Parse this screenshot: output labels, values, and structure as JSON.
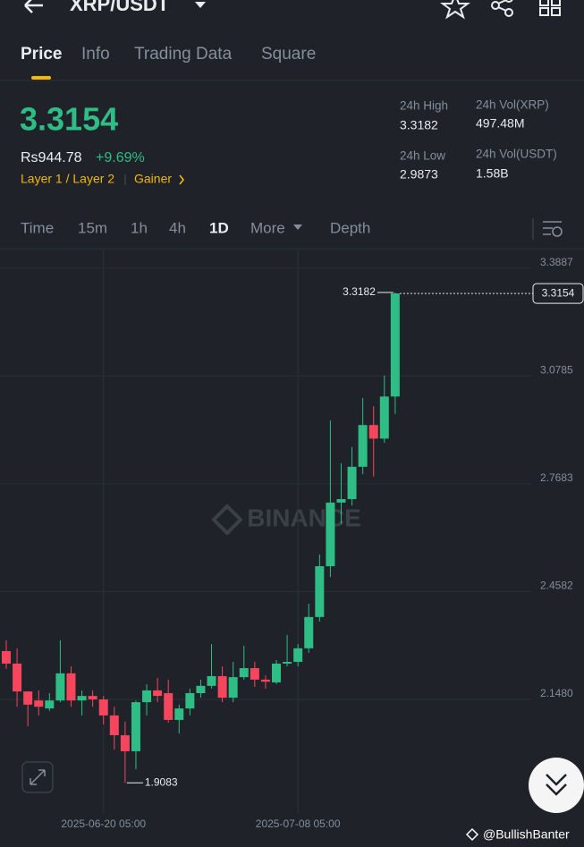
{
  "header": {
    "title": "XRP/USDT"
  },
  "tabs": [
    "Price",
    "Info",
    "Trading Data",
    "Square"
  ],
  "ticker": {
    "price": "3.3154",
    "local_price": "Rs944.78",
    "change": "+9.69%",
    "tags": [
      "Layer 1 / Layer 2",
      "Gainer"
    ]
  },
  "stats": [
    {
      "label": "24h High",
      "value": "3.3182"
    },
    {
      "label": "24h Vol(XRP)",
      "value": "497.48M"
    },
    {
      "label": "24h Low",
      "value": "2.9873"
    },
    {
      "label": "24h Vol(USDT)",
      "value": "1.58B"
    }
  ],
  "intervals": [
    "Time",
    "15m",
    "1h",
    "4h",
    "1D",
    "More",
    "Depth"
  ],
  "watermark": "BINANCE",
  "credit": "@BullishBanter",
  "chart_data": {
    "type": "candlestick",
    "categories": [
      null,
      null,
      null,
      null,
      null,
      null,
      null,
      null,
      null,
      "2025-06-20 05:00",
      null,
      null,
      null,
      null,
      null,
      null,
      null,
      null,
      null,
      null,
      null,
      null,
      null,
      null,
      null,
      null,
      null,
      "2025-07-08 05:00",
      null,
      null,
      null,
      null,
      null,
      null,
      null,
      null,
      null
    ],
    "open": [
      2.287,
      2.251,
      2.171,
      2.145,
      2.122,
      2.145,
      2.223,
      2.145,
      2.158,
      2.148,
      2.102,
      2.045,
      1.999,
      2.14,
      2.174,
      2.166,
      2.089,
      2.122,
      2.166,
      2.187,
      2.215,
      2.153,
      2.212,
      2.238,
      2.205,
      2.197,
      2.251,
      2.256,
      2.295,
      2.385,
      2.531,
      2.714,
      2.724,
      2.817,
      2.937,
      2.898,
      3.019
    ],
    "high": [
      2.318,
      2.295,
      2.171,
      2.174,
      2.166,
      2.318,
      2.243,
      2.174,
      2.174,
      2.158,
      2.127,
      2.084,
      2.145,
      2.192,
      2.21,
      2.205,
      2.133,
      2.179,
      2.205,
      2.307,
      2.243,
      2.256,
      2.302,
      2.256,
      2.217,
      2.261,
      2.333,
      2.307,
      2.423,
      2.565,
      2.95,
      2.827,
      2.874,
      3.015,
      2.991,
      3.079,
      3.3182
    ],
    "low": [
      2.236,
      2.127,
      2.071,
      2.102,
      2.115,
      2.14,
      2.127,
      2.102,
      2.127,
      2.076,
      2.004,
      1.9083,
      1.947,
      2.102,
      2.14,
      2.081,
      2.05,
      2.102,
      2.153,
      2.179,
      2.14,
      2.14,
      2.205,
      2.184,
      2.179,
      2.192,
      2.243,
      2.243,
      2.282,
      2.372,
      2.5,
      2.653,
      2.706,
      2.796,
      2.789,
      2.886,
      2.969
    ],
    "close": [
      2.251,
      2.171,
      2.133,
      2.127,
      2.145,
      2.223,
      2.145,
      2.158,
      2.148,
      2.102,
      2.045,
      1.999,
      2.14,
      2.174,
      2.158,
      2.089,
      2.122,
      2.166,
      2.187,
      2.215,
      2.153,
      2.212,
      2.238,
      2.205,
      2.199,
      2.251,
      2.256,
      2.295,
      2.385,
      2.531,
      2.714,
      2.724,
      2.817,
      2.937,
      2.898,
      3.019,
      3.3154
    ],
    "colors": {
      "up": "#2ebd85",
      "down": "#f6465d"
    },
    "ylim": [
      1.8188,
      3.4391
    ],
    "yticks": [
      {
        "value": 2.148,
        "label": "2.1480"
      },
      2.4582,
      2.7683,
      3.0785,
      3.3887
    ],
    "grid": true
  }
}
